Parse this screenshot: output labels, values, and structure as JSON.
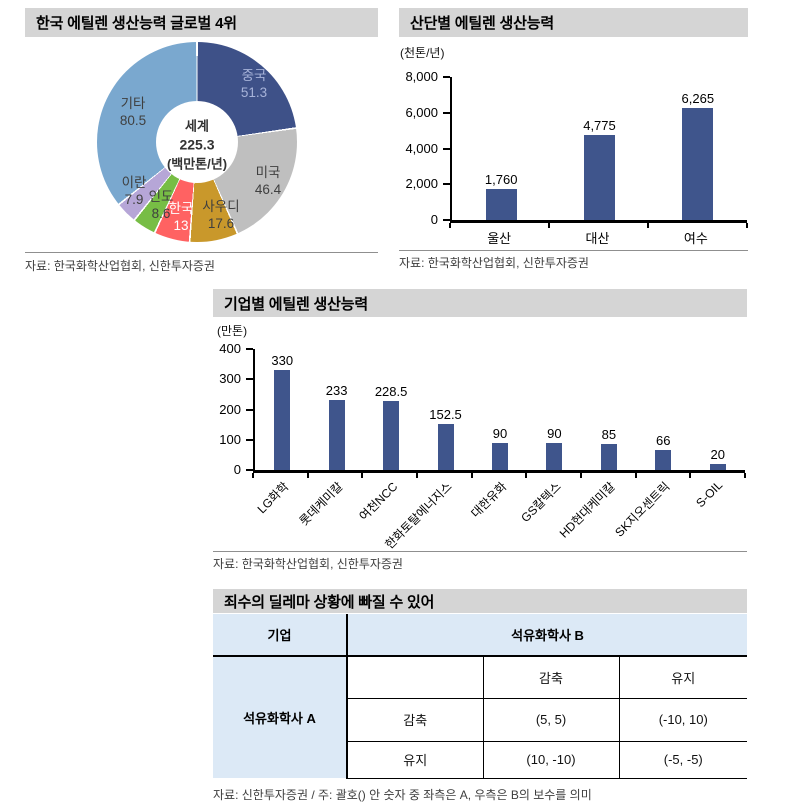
{
  "panels": {
    "global": {
      "title": "한국 에틸렌 생산능력 글로벌 4위",
      "source": "자료: 한국화학산업협회, 신한투자증권"
    },
    "complex": {
      "title": "산단별 에틸렌 생산능력",
      "unit": "(천톤/년)",
      "source": "자료: 한국화학산업협회, 신한투자증권"
    },
    "company": {
      "title": "기업별 에틸렌 생산능력",
      "unit": "(만톤)",
      "source": "자료: 한국화학산업협회, 신한투자증권"
    },
    "dilemma": {
      "title": "죄수의 딜레마 상황에 빠질 수 있어",
      "source": "자료: 신한투자증권 / 주: 괄호() 안 숫자 중 좌측은 A, 우측은 B의 보수를 의미"
    }
  },
  "chart_data": [
    {
      "id": "donut-global",
      "type": "pie",
      "title": "한국 에틸렌 생산능력 글로벌 4위",
      "unit": "백만톤/년",
      "total": 225.3,
      "center_label": {
        "line1": "세계",
        "line2": "225.3",
        "line3": "(백만톤/년)"
      },
      "legend_position": "on-slices",
      "slices": [
        {
          "label": "중국",
          "value": 51.3,
          "value_label": "51.3",
          "color": "#3e5188",
          "label_color": "#a7b3d9"
        },
        {
          "label": "미국",
          "value": 46.4,
          "value_label": "46.4",
          "color": "#bfbfbf",
          "label_color": "#3f3f3f"
        },
        {
          "label": "사우디",
          "value": 17.6,
          "value_label": "17.6",
          "color": "#c9982b",
          "label_color": "#3f3f3f"
        },
        {
          "label": "한국",
          "value": 13,
          "value_label": "13",
          "color": "#ff6262",
          "label_color": "#ffffff"
        },
        {
          "label": "인도",
          "value": 8.6,
          "value_label": "8.6",
          "color": "#77bd45",
          "label_color": "#3f3f3f"
        },
        {
          "label": "이란",
          "value": 7.9,
          "value_label": "7.9",
          "color": "#b6a6d7",
          "label_color": "#3f3f3f"
        },
        {
          "label": "기타",
          "value": 80.5,
          "value_label": "80.5",
          "color": "#7aa8cf",
          "label_color": "#3f3f3f"
        }
      ]
    },
    {
      "id": "bar-complex",
      "type": "bar",
      "title": "산단별 에틸렌 생산능력",
      "ylabel": "(천톤/년)",
      "categories": [
        "울산",
        "대산",
        "여수"
      ],
      "values": [
        1760,
        4775,
        6265
      ],
      "value_labels": [
        "1,760",
        "4,775",
        "6,265"
      ],
      "ylim": [
        0,
        8000
      ],
      "yticks": [
        {
          "v": 0,
          "label": "0"
        },
        {
          "v": 2000,
          "label": "2,000"
        },
        {
          "v": 4000,
          "label": "4,000"
        },
        {
          "v": 6000,
          "label": "6,000"
        },
        {
          "v": 8000,
          "label": "8,000"
        }
      ],
      "grid": false,
      "bar_color": "#3f558c"
    },
    {
      "id": "bar-company",
      "type": "bar",
      "title": "기업별 에틸렌 생산능력",
      "ylabel": "(만톤)",
      "categories": [
        "LG화학",
        "롯데케미칼",
        "여천NCC",
        "한화토탈에너지스",
        "대한유화",
        "GS칼텍스",
        "HD현대케미칼",
        "SK지오센트릭",
        "S-OIL"
      ],
      "values": [
        330,
        233,
        228.5,
        152.5,
        90,
        90,
        85,
        66,
        20
      ],
      "value_labels": [
        "330",
        "233",
        "228.5",
        "152.5",
        "90",
        "90",
        "85",
        "66",
        "20"
      ],
      "ylim": [
        0,
        400
      ],
      "yticks": [
        {
          "v": 0,
          "label": "0"
        },
        {
          "v": 100,
          "label": "100"
        },
        {
          "v": 200,
          "label": "200"
        },
        {
          "v": 300,
          "label": "300"
        },
        {
          "v": 400,
          "label": "400"
        }
      ],
      "grid": false,
      "bar_color": "#3f558c"
    },
    {
      "id": "payoff-matrix",
      "type": "table",
      "title": "죄수의 딜레마 상황에 빠질 수 있어",
      "corner_header": "기업",
      "column_group_header": "석유화학사 B",
      "row_group_header": "석유화학사 A",
      "column_headers": [
        "감축",
        "유지"
      ],
      "row_headers": [
        "감축",
        "유지"
      ],
      "cells": [
        [
          "(5, 5)",
          "(-10, 10)"
        ],
        [
          "(10, -10)",
          "(-5, -5)"
        ]
      ]
    }
  ],
  "table": {
    "corner_header": "기업",
    "column_group_header": "석유화학사 B",
    "row_group_header": "석유화학사 A",
    "column_headers": [
      "감축",
      "유지"
    ],
    "row_headers": [
      "감축",
      "유지"
    ],
    "cells": [
      [
        "(5, 5)",
        "(-10, 10)"
      ],
      [
        "(10, -10)",
        "(-5, -5)"
      ]
    ]
  },
  "colors": {
    "bar": "#3f558c",
    "title_bar_bg": "#d5d5d5",
    "table_header_bg": "#dce9f6",
    "divider": "#8f8f8f",
    "source_text": "#3d3d3d"
  }
}
